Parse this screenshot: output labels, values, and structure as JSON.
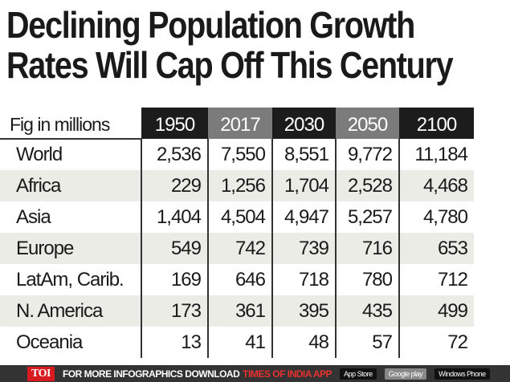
{
  "title": [
    "Declining Population Growth",
    "Rates Will Cap Off This Century"
  ],
  "chart_data": {
    "type": "table",
    "title": "Declining Population Growth Rates Will Cap Off This Century",
    "unit_label": "Fig in millions",
    "columns": [
      "1950",
      "2017",
      "2030",
      "2050",
      "2100"
    ],
    "header_colors": [
      "#1c1c1c",
      "#7b7b7b",
      "#1c1c1c",
      "#7b7b7b",
      "#1c1c1c"
    ],
    "rows": [
      {
        "label": "World",
        "values": [
          "2,536",
          "7,550",
          "8,551",
          "9,772",
          "11,184"
        ]
      },
      {
        "label": "Africa",
        "values": [
          "229",
          "1,256",
          "1,704",
          "2,528",
          "4,468"
        ]
      },
      {
        "label": "Asia",
        "values": [
          "1,404",
          "4,504",
          "4,947",
          "5,257",
          "4,780"
        ]
      },
      {
        "label": "Europe",
        "values": [
          "549",
          "742",
          "739",
          "716",
          "653"
        ]
      },
      {
        "label": "LatAm, Carib.",
        "values": [
          "169",
          "646",
          "718",
          "780",
          "712"
        ]
      },
      {
        "label": "N. America",
        "values": [
          "173",
          "361",
          "395",
          "435",
          "499"
        ]
      },
      {
        "label": "Oceania",
        "values": [
          "13",
          "41",
          "48",
          "57",
          "72"
        ]
      }
    ]
  },
  "footer": {
    "logo": "TOI",
    "text": "FOR MORE  INFOGRAPHICS DOWNLOAD",
    "app": "TIMES OF INDIA  APP",
    "badges": [
      "App Store",
      "Google play",
      "Windows Phone"
    ]
  }
}
